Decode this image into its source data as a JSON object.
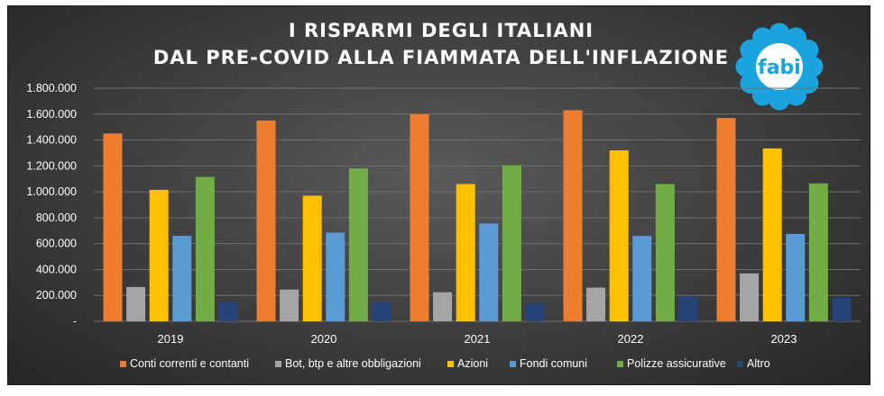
{
  "chart_data": {
    "type": "bar",
    "title": [
      "I RISPARMI DEGLI ITALIANI",
      "DAL PRE-COVID ALLA FIAMMATA DELL'INFLAZIONE"
    ],
    "categories": [
      "2019",
      "2020",
      "2021",
      "2022",
      "2023"
    ],
    "ylim": [
      0,
      1800000
    ],
    "yticks": [
      {
        "value": 0,
        "label": "-"
      },
      {
        "value": 200000,
        "label": "200.000"
      },
      {
        "value": 400000,
        "label": "400.000"
      },
      {
        "value": 600000,
        "label": "600.000"
      },
      {
        "value": 800000,
        "label": "800.000"
      },
      {
        "value": 1000000,
        "label": "1.000.000"
      },
      {
        "value": 1200000,
        "label": "1.200.000"
      },
      {
        "value": 1400000,
        "label": "1.400.000"
      },
      {
        "value": 1600000,
        "label": "1.600.000"
      },
      {
        "value": 1800000,
        "label": "1.800.000"
      }
    ],
    "grid": true,
    "legend": "bottom",
    "series": [
      {
        "name": "Conti correnti e contanti",
        "color": "#ed7d31",
        "values": [
          1450000,
          1550000,
          1600000,
          1630000,
          1570000
        ]
      },
      {
        "name": "Bot, btp e altre obbligazioni",
        "color": "#a5a5a5",
        "values": [
          265000,
          245000,
          225000,
          260000,
          370000
        ]
      },
      {
        "name": "Azioni",
        "color": "#ffc000",
        "values": [
          1015000,
          970000,
          1060000,
          1320000,
          1335000
        ]
      },
      {
        "name": "Fondi comuni",
        "color": "#5b9bd5",
        "values": [
          660000,
          685000,
          755000,
          660000,
          675000
        ]
      },
      {
        "name": "Polizze assicurative",
        "color": "#70ad47",
        "values": [
          1115000,
          1180000,
          1205000,
          1060000,
          1065000
        ]
      },
      {
        "name": "Altro",
        "color": "#264478",
        "values": [
          145000,
          145000,
          140000,
          195000,
          185000
        ]
      }
    ]
  },
  "logo": {
    "text": "fabi",
    "color": "#1aa3dc"
  }
}
